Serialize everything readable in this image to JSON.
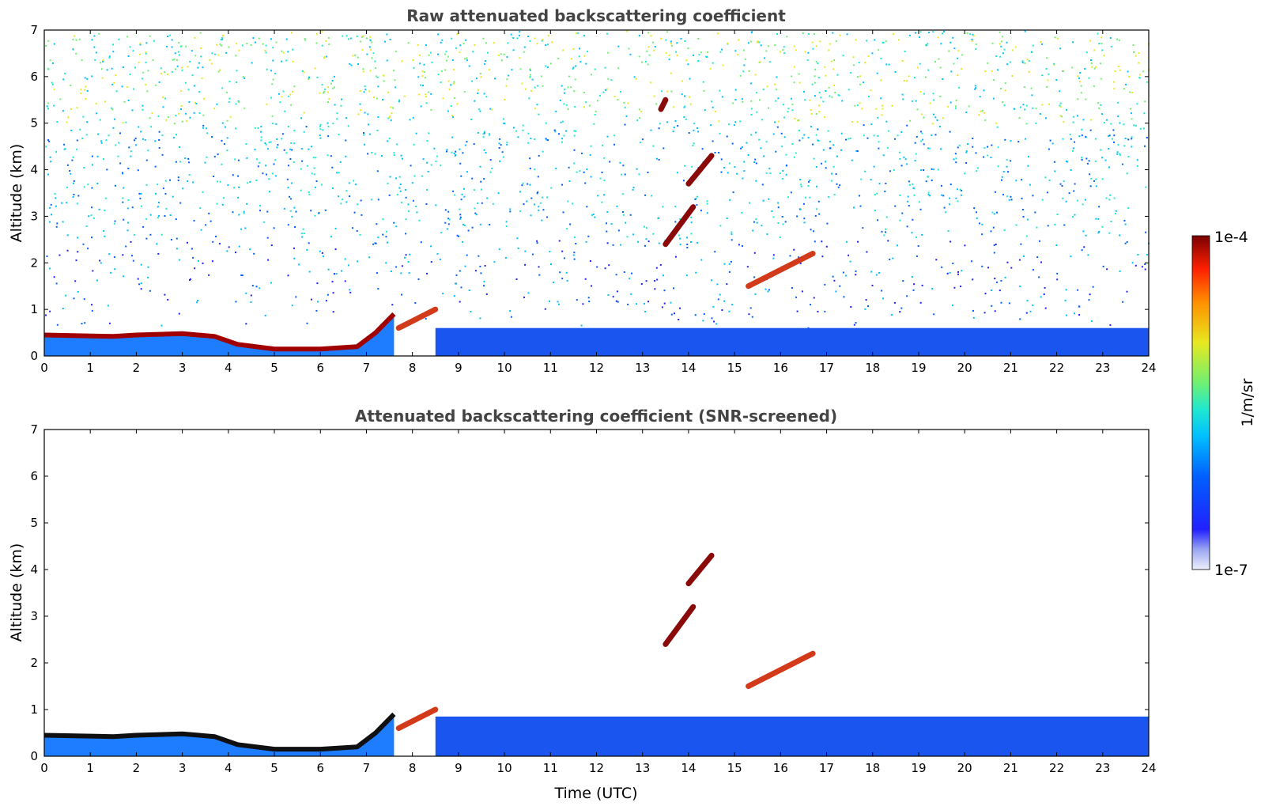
{
  "chart_data": [
    {
      "type": "heatmap",
      "title": "Raw attenuated backscattering coefficient",
      "xlabel": "",
      "ylabel": "Altitude (km)",
      "xlim": [
        0,
        24
      ],
      "ylim": [
        0,
        7
      ],
      "x_ticks": [
        "0",
        "1",
        "2",
        "3",
        "4",
        "5",
        "6",
        "7",
        "8",
        "9",
        "10",
        "11",
        "12",
        "13",
        "14",
        "15",
        "16",
        "17",
        "18",
        "19",
        "20",
        "21",
        "22",
        "23",
        "24"
      ],
      "y_ticks": [
        "0",
        "1",
        "2",
        "3",
        "4",
        "5",
        "6",
        "7"
      ],
      "features": [
        {
          "kind": "boundary_layer",
          "x": [
            0,
            1.5,
            2,
            3,
            3.7,
            4.2,
            5,
            6,
            6.8,
            7.2,
            7.6
          ],
          "y": [
            0.45,
            0.42,
            0.45,
            0.48,
            0.42,
            0.25,
            0.15,
            0.15,
            0.2,
            0.5,
            0.9
          ]
        },
        {
          "kind": "low_cloud",
          "x": [
            7.7,
            8.5
          ],
          "y": [
            0.6,
            1.0
          ]
        },
        {
          "kind": "mid_cloud",
          "x": [
            13.5,
            14.1
          ],
          "y": [
            2.4,
            3.2
          ]
        },
        {
          "kind": "mid_cloud",
          "x": [
            14.0,
            14.5
          ],
          "y": [
            3.7,
            4.3
          ]
        },
        {
          "kind": "mid_cloud",
          "x": [
            13.4,
            13.5
          ],
          "y": [
            5.3,
            5.5
          ]
        },
        {
          "kind": "low_cloud",
          "x": [
            15.3,
            16.7
          ],
          "y": [
            1.5,
            2.2
          ]
        },
        {
          "kind": "aerosol_layer",
          "x": [
            8.5,
            24
          ],
          "y": [
            0,
            0.6
          ]
        }
      ]
    },
    {
      "type": "heatmap",
      "title": "Attenuated backscattering coefficient (SNR-screened)",
      "xlabel": "Time (UTC)",
      "ylabel": "Altitude (km)",
      "xlim": [
        0,
        24
      ],
      "ylim": [
        0,
        7
      ],
      "x_ticks": [
        "0",
        "1",
        "2",
        "3",
        "4",
        "5",
        "6",
        "7",
        "8",
        "9",
        "10",
        "11",
        "12",
        "13",
        "14",
        "15",
        "16",
        "17",
        "18",
        "19",
        "20",
        "21",
        "22",
        "23",
        "24"
      ],
      "y_ticks": [
        "0",
        "1",
        "2",
        "3",
        "4",
        "5",
        "6",
        "7"
      ],
      "features": [
        {
          "kind": "boundary_layer",
          "x": [
            0,
            1.5,
            2,
            3,
            3.7,
            4.2,
            5,
            6,
            6.8,
            7.2,
            7.6
          ],
          "y": [
            0.45,
            0.42,
            0.45,
            0.48,
            0.42,
            0.25,
            0.15,
            0.15,
            0.2,
            0.5,
            0.9
          ]
        },
        {
          "kind": "low_cloud",
          "x": [
            7.7,
            8.5
          ],
          "y": [
            0.6,
            1.0
          ]
        },
        {
          "kind": "mid_cloud",
          "x": [
            13.5,
            14.1
          ],
          "y": [
            2.4,
            3.2
          ]
        },
        {
          "kind": "mid_cloud",
          "x": [
            14.0,
            14.5
          ],
          "y": [
            3.7,
            4.3
          ]
        },
        {
          "kind": "low_cloud",
          "x": [
            15.3,
            16.7
          ],
          "y": [
            1.5,
            2.2
          ]
        },
        {
          "kind": "aerosol_layer",
          "x": [
            8.5,
            24
          ],
          "y": [
            0,
            0.85
          ]
        }
      ]
    }
  ],
  "colorbar": {
    "label": "1/m/sr",
    "max_label": "1e-4",
    "min_label": "1e-7",
    "scale": "log",
    "colormap": "jet",
    "colors": [
      "#eef0fb",
      "#9aa6f0",
      "#2020ff",
      "#0060ff",
      "#00c0ff",
      "#20e8d0",
      "#70f070",
      "#e8e820",
      "#ff9000",
      "#ff2000",
      "#7a0000"
    ]
  }
}
